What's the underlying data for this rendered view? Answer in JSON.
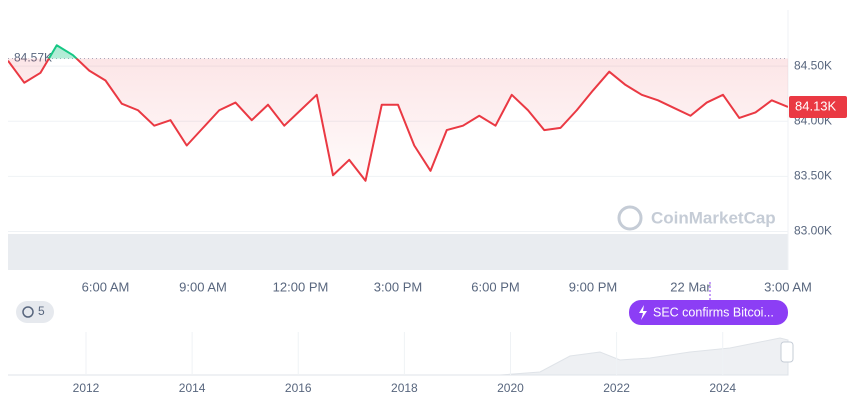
{
  "chart_data": {
    "type": "line",
    "x": [
      3,
      3.5,
      4,
      4.5,
      5,
      5.5,
      6,
      6.5,
      7,
      7.5,
      8,
      8.5,
      9,
      9.5,
      10,
      10.5,
      11,
      11.5,
      12,
      12.5,
      13,
      13.5,
      14,
      14.5,
      15,
      15.5,
      16,
      16.5,
      17,
      17.5,
      18,
      18.5,
      19,
      19.5,
      20,
      20.5,
      21,
      21.5,
      22,
      22.5,
      23,
      23.5,
      24,
      24.5,
      25,
      25.5,
      26,
      26.5,
      27
    ],
    "series": [
      {
        "color": "#ea3943",
        "values": [
          84.55,
          84.35,
          84.44,
          84.69,
          84.6,
          84.46,
          84.37,
          84.16,
          84.1,
          83.96,
          84.01,
          83.78,
          83.94,
          84.1,
          84.17,
          84.01,
          84.15,
          83.96,
          84.1,
          84.24,
          83.51,
          83.65,
          83.46,
          84.15,
          84.15,
          83.78,
          83.55,
          83.92,
          83.96,
          84.05,
          83.96,
          84.24,
          84.1,
          83.92,
          83.94,
          84.1,
          84.28,
          84.45,
          84.33,
          84.24,
          84.19,
          84.12,
          84.05,
          84.17,
          84.24,
          84.03,
          84.08,
          84.19,
          84.13
        ]
      }
    ],
    "above_color": "#16c784",
    "baseline": 84.57,
    "baseline_label": "84.57K",
    "last_label": "84.13K",
    "xlim": [
      3,
      27
    ],
    "xticks": [
      {
        "value": 6,
        "label": "6:00 AM"
      },
      {
        "value": 9,
        "label": "9:00 AM"
      },
      {
        "value": 12,
        "label": "12:00 PM"
      },
      {
        "value": 15,
        "label": "3:00 PM"
      },
      {
        "value": 18,
        "label": "6:00 PM"
      },
      {
        "value": 21,
        "label": "9:00 PM"
      },
      {
        "value": 24,
        "label": "22 Mar"
      },
      {
        "value": 27,
        "label": "3:00 AM"
      }
    ],
    "ylim": [
      82.65,
      85.01
    ],
    "yticks": [
      {
        "value": 83,
        "label": "83.00K"
      },
      {
        "value": 83.5,
        "label": "83.50K"
      },
      {
        "value": 84,
        "label": "84.00K"
      },
      {
        "value": 84.5,
        "label": "84.50K"
      }
    ],
    "grid": true,
    "watermark": "CoinMarketCap",
    "history_badge": "5",
    "event_button": "SEC confirms Bitcoi...",
    "navigator": {
      "xlim": [
        2010.53,
        2025.23
      ],
      "xticks": [
        2012,
        2014,
        2016,
        2018,
        2020,
        2022,
        2024
      ]
    }
  }
}
